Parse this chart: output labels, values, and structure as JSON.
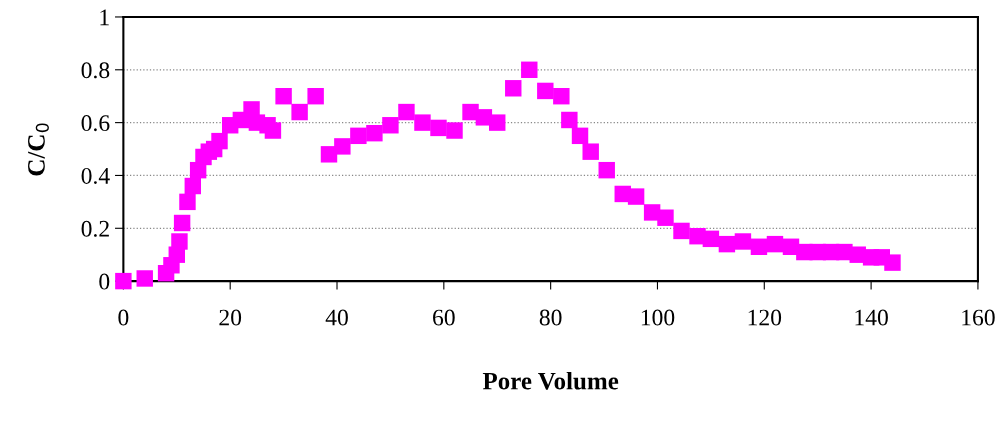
{
  "chart_data": {
    "type": "scatter",
    "xlabel": "Pore Volume",
    "ylabel": "C/C$_{0}$",
    "x": [
      0,
      4,
      8,
      9,
      10,
      10.5,
      11,
      12,
      13,
      14,
      15,
      16,
      17,
      18,
      20,
      22,
      24,
      25,
      27,
      28,
      30,
      33,
      36,
      38.5,
      41,
      44,
      47,
      50,
      53,
      56,
      59,
      62,
      65,
      67.5,
      70,
      73,
      76,
      79,
      82,
      83.5,
      85.5,
      87.5,
      90.5,
      93.5,
      96,
      99,
      101.5,
      104.5,
      107.5,
      110,
      113,
      116,
      119,
      122,
      125,
      127.5,
      130,
      132.5,
      135,
      137.5,
      140,
      142,
      144
    ],
    "series": [
      {
        "color": "#ff00ff",
        "values": [
          0.0,
          0.01,
          0.03,
          0.06,
          0.1,
          0.15,
          0.22,
          0.3,
          0.36,
          0.42,
          0.47,
          0.49,
          0.5,
          0.53,
          0.59,
          0.61,
          0.65,
          0.6,
          0.59,
          0.57,
          0.7,
          0.64,
          0.7,
          0.48,
          0.51,
          0.55,
          0.56,
          0.59,
          0.64,
          0.6,
          0.58,
          0.57,
          0.64,
          0.62,
          0.6,
          0.73,
          0.8,
          0.72,
          0.7,
          0.61,
          0.55,
          0.49,
          0.42,
          0.33,
          0.32,
          0.26,
          0.24,
          0.19,
          0.17,
          0.16,
          0.14,
          0.15,
          0.13,
          0.14,
          0.13,
          0.11,
          0.11,
          0.11,
          0.11,
          0.1,
          0.09,
          0.09,
          0.07
        ]
      }
    ],
    "xlim": [
      0,
      160
    ],
    "xticks": [
      0,
      20,
      40,
      60,
      80,
      100,
      120,
      140,
      160
    ],
    "ylim": [
      0,
      1
    ],
    "yticks": [
      0,
      {
        "value": 0.2,
        "label": "0.2"
      },
      {
        "value": 0.4,
        "label": "0.4"
      },
      {
        "value": 0.6,
        "label": "0.6"
      },
      {
        "value": 0.8,
        "label": "0.8"
      },
      1
    ],
    "grid": "y",
    "marker": "square",
    "legend": false
  }
}
